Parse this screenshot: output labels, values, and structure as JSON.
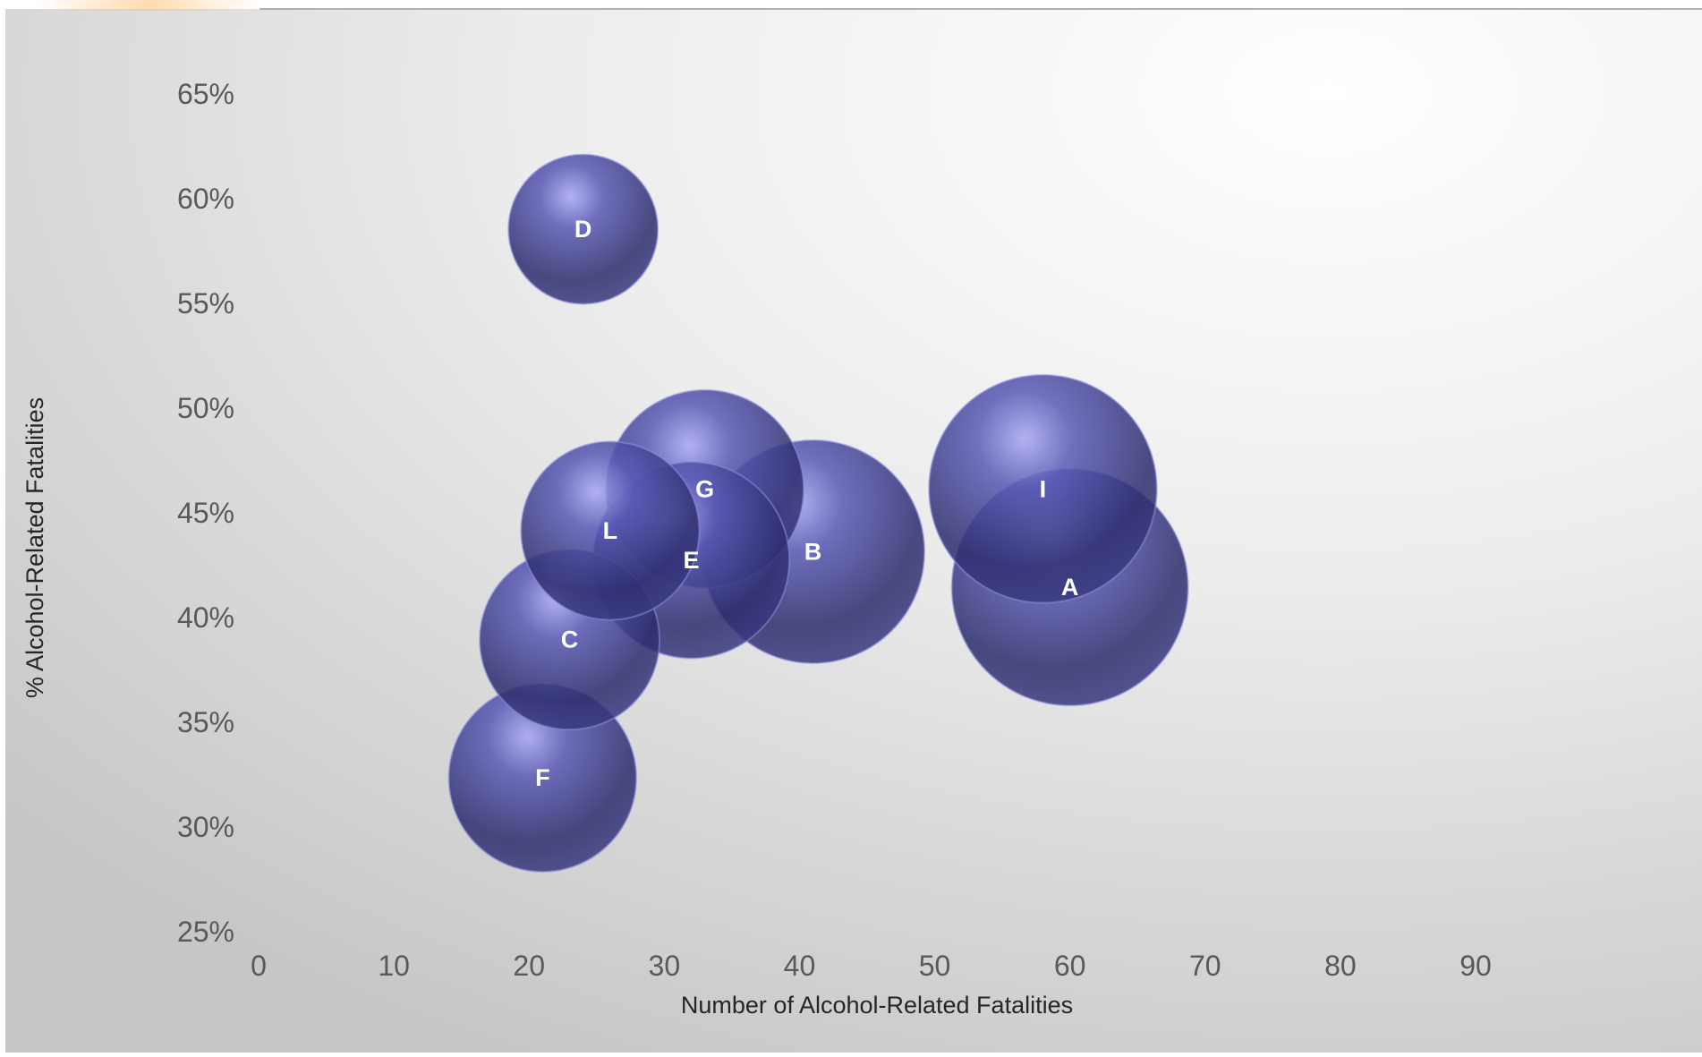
{
  "chart_data": {
    "type": "bubble",
    "title": "",
    "xlabel": "Number of Alcohol-Related  Fatalities",
    "ylabel": "% Alcohol-Related Fatalities",
    "xlim": [
      0,
      90
    ],
    "ylim": [
      25,
      65
    ],
    "x_ticks": [
      "0",
      "10",
      "20",
      "30",
      "40",
      "50",
      "60",
      "70",
      "80",
      "90"
    ],
    "y_ticks": [
      "25%",
      "30%",
      "35%",
      "40%",
      "45%",
      "50%",
      "55%",
      "60%",
      "65%"
    ],
    "grid": false,
    "legend": "none",
    "points": [
      {
        "label": "D",
        "x": 24,
        "y": 58.5,
        "size": 0.4
      },
      {
        "label": "F",
        "x": 21,
        "y": 32.3,
        "size": 0.63
      },
      {
        "label": "C",
        "x": 23,
        "y": 38.9,
        "size": 0.58
      },
      {
        "label": "E",
        "x": 32,
        "y": 42.7,
        "size": 0.69
      },
      {
        "label": "B",
        "x": 41,
        "y": 43.1,
        "size": 0.89
      },
      {
        "label": "L",
        "x": 26,
        "y": 44.1,
        "size": 0.57
      },
      {
        "label": "G",
        "x": 33,
        "y": 46.1,
        "size": 0.7
      },
      {
        "label": "A",
        "x": 60,
        "y": 41.4,
        "size": 1.0
      },
      {
        "label": "I",
        "x": 58,
        "y": 46.1,
        "size": 0.93
      }
    ],
    "colors": {
      "bubble": "#3b3b84",
      "highlight": "#a5a5ef",
      "label": "#ffffff"
    }
  }
}
